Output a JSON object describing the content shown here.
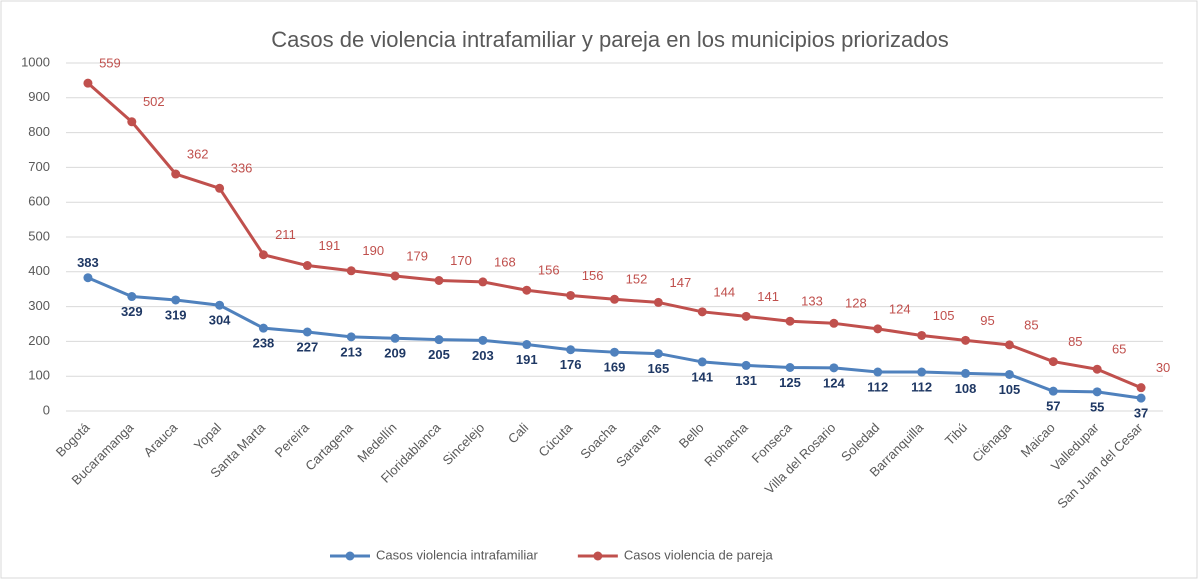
{
  "chart_data": {
    "type": "stacked_line",
    "title": "Casos de violencia intrafamiliar y pareja en los municipios priorizados",
    "categories": [
      "Bogotá",
      "Bucaramanga",
      "Arauca",
      "Yopal",
      "Santa Marta",
      "Pereira",
      "Cartagena",
      "Medellín",
      "Floridablanca",
      "Sincelejo",
      "Cali",
      "Cúcuta",
      "Soacha",
      "Saravena",
      "Bello",
      "Riohacha",
      "Fonseca",
      "Villa del Rosario",
      "Soledad",
      "Barranquilla",
      "Tibú",
      "Ciénaga",
      "Maicao",
      "Valledupar",
      "San Juan del Cesar"
    ],
    "series": [
      {
        "name": "Casos violencia intrafamiliar",
        "color": "#4f81bd",
        "label_color": "#1f3864",
        "values": [
          383,
          329,
          319,
          304,
          238,
          227,
          213,
          209,
          205,
          203,
          191,
          176,
          169,
          165,
          141,
          131,
          125,
          124,
          112,
          112,
          108,
          105,
          57,
          55,
          37
        ]
      },
      {
        "name": "Casos violencia de pareja",
        "color": "#c0504d",
        "label_color": "#c0504d",
        "values": [
          559,
          502,
          362,
          336,
          211,
          191,
          190,
          179,
          170,
          168,
          156,
          156,
          152,
          147,
          144,
          141,
          133,
          128,
          124,
          105,
          95,
          85,
          85,
          65,
          30
        ]
      }
    ],
    "ylim": [
      0,
      1000
    ],
    "yticks": [
      0,
      100,
      200,
      300,
      400,
      500,
      600,
      700,
      800,
      900,
      1000
    ],
    "grid": true,
    "legend": "bottom"
  }
}
